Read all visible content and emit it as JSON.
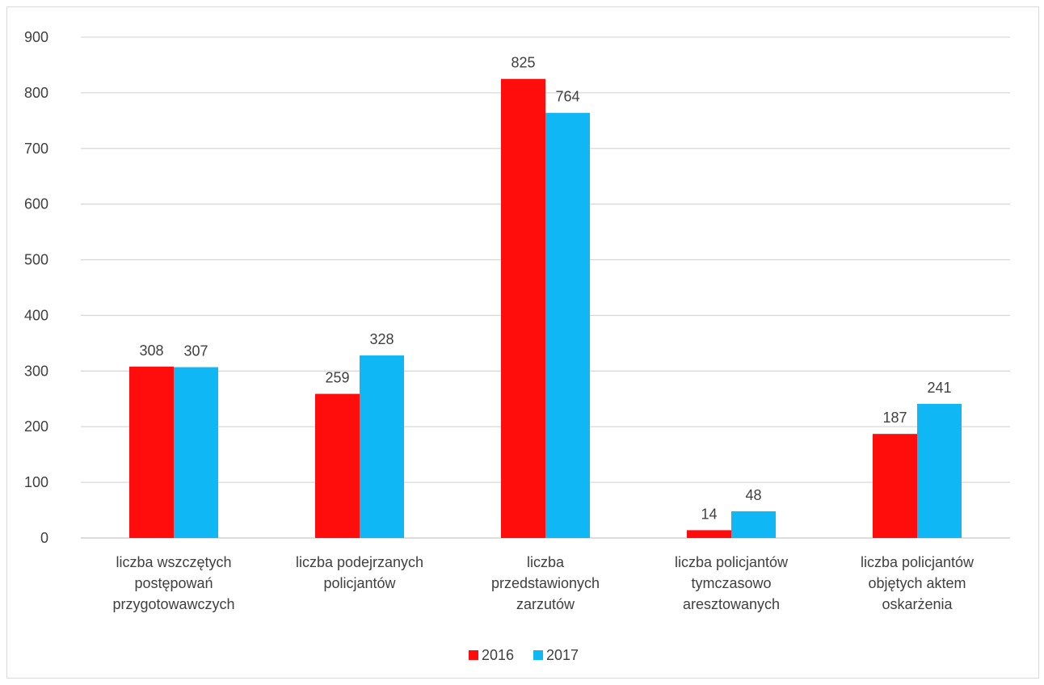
{
  "chart_data": {
    "type": "bar",
    "categories": [
      [
        "liczba wszczętych",
        "postępowań",
        "przygotowawczych"
      ],
      [
        "liczba podejrzanych",
        "policjantów"
      ],
      [
        "liczba",
        "przedstawionych",
        "zarzutów"
      ],
      [
        "liczba policjantów",
        "tymczasowo",
        "aresztowanych"
      ],
      [
        "liczba policjantów",
        "objętych aktem",
        "oskarżenia"
      ]
    ],
    "series": [
      {
        "name": "2016",
        "color": "#ff0d0d",
        "values": [
          308,
          259,
          825,
          14,
          187
        ]
      },
      {
        "name": "2017",
        "color": "#0fb8f5",
        "values": [
          307,
          328,
          764,
          48,
          241
        ]
      }
    ],
    "ylim": [
      0,
      900
    ],
    "yticks": [
      0,
      100,
      200,
      300,
      400,
      500,
      600,
      700,
      800,
      900
    ],
    "grid": true,
    "legend_position": "bottom",
    "title": "",
    "xlabel": "",
    "ylabel": ""
  }
}
